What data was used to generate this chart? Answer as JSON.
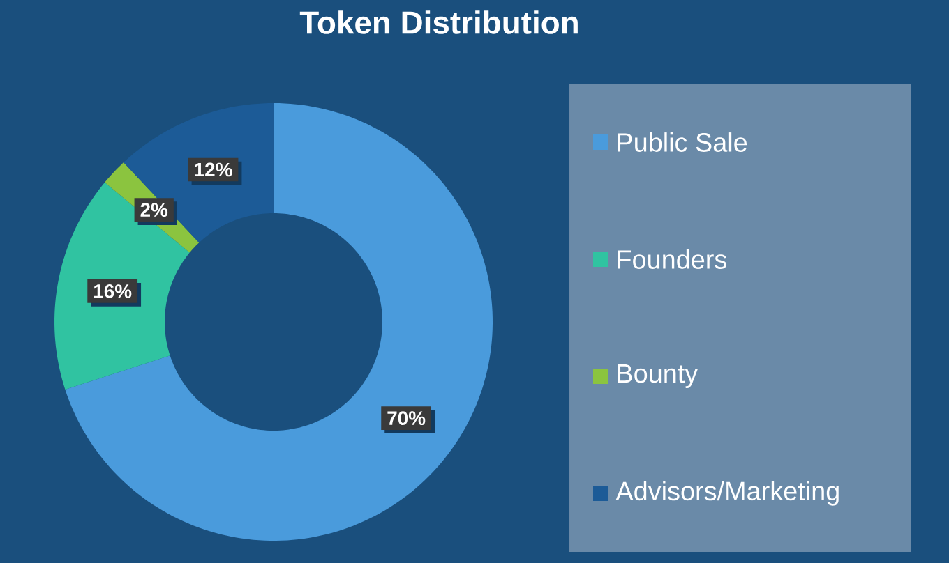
{
  "chart_data": {
    "type": "donut",
    "title": "Token Distribution",
    "categories": [
      "Public Sale",
      "Founders",
      "Bounty",
      "Advisors/Marketing"
    ],
    "values": [
      70,
      16,
      2,
      12
    ],
    "value_labels": [
      "70%",
      "16%",
      "2%",
      "12%"
    ],
    "colors": [
      "#4a9bdc",
      "#30c3a1",
      "#8bc43f",
      "#1c5b97"
    ],
    "legend": "right"
  }
}
